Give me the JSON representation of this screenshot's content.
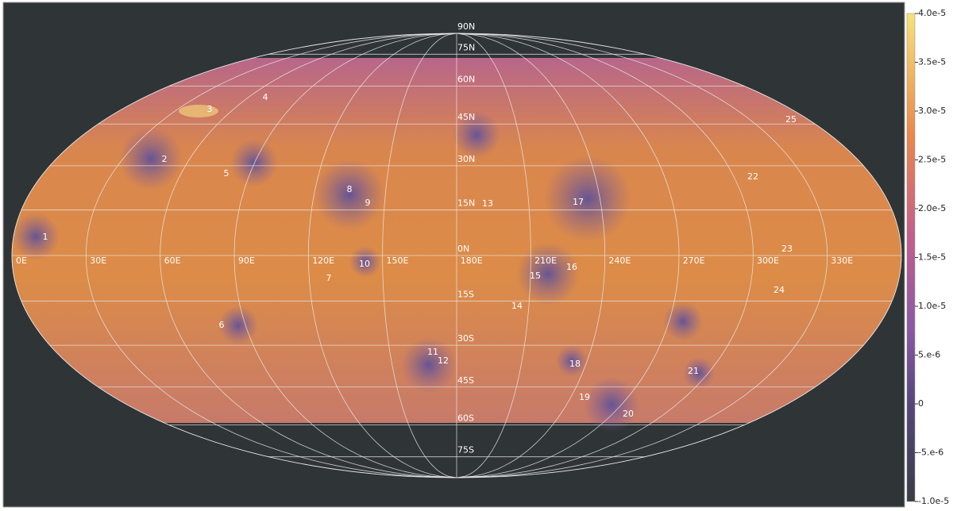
{
  "map": {
    "latitude_labels": [
      "90N",
      "75N",
      "60N",
      "45N",
      "30N",
      "15N",
      "0N",
      "15S",
      "30S",
      "45S",
      "60S",
      "75S"
    ],
    "longitude_labels": [
      "0E",
      "30E",
      "60E",
      "90E",
      "120E",
      "150E",
      "180E",
      "210E",
      "240E",
      "270E",
      "300E",
      "330E"
    ],
    "features": [
      "1",
      "2",
      "3",
      "4",
      "5",
      "6",
      "7",
      "8",
      "9",
      "10",
      "11",
      "12",
      "13",
      "14",
      "15",
      "16",
      "17",
      "18",
      "19",
      "20",
      "21",
      "22",
      "23",
      "24",
      "25"
    ]
  },
  "colorbar": {
    "range": [
      -1e-05,
      4e-05
    ],
    "ticks": [
      {
        "value": 4e-05,
        "label": "4.0e-5"
      },
      {
        "value": 3.5e-05,
        "label": "3.5e-5"
      },
      {
        "value": 3e-05,
        "label": "3.0e-5"
      },
      {
        "value": 2.5e-05,
        "label": "2.5e-5"
      },
      {
        "value": 2e-05,
        "label": "2.0e-5"
      },
      {
        "value": 1.5e-05,
        "label": "1.5e-5"
      },
      {
        "value": 1e-05,
        "label": "1.0e-5"
      },
      {
        "value": 5e-06,
        "label": "5.e-6"
      },
      0,
      {
        "value": -5e-06,
        "label": "-5.e-6"
      },
      {
        "value": -1e-05,
        "label": "-1.0e-5"
      }
    ]
  }
}
